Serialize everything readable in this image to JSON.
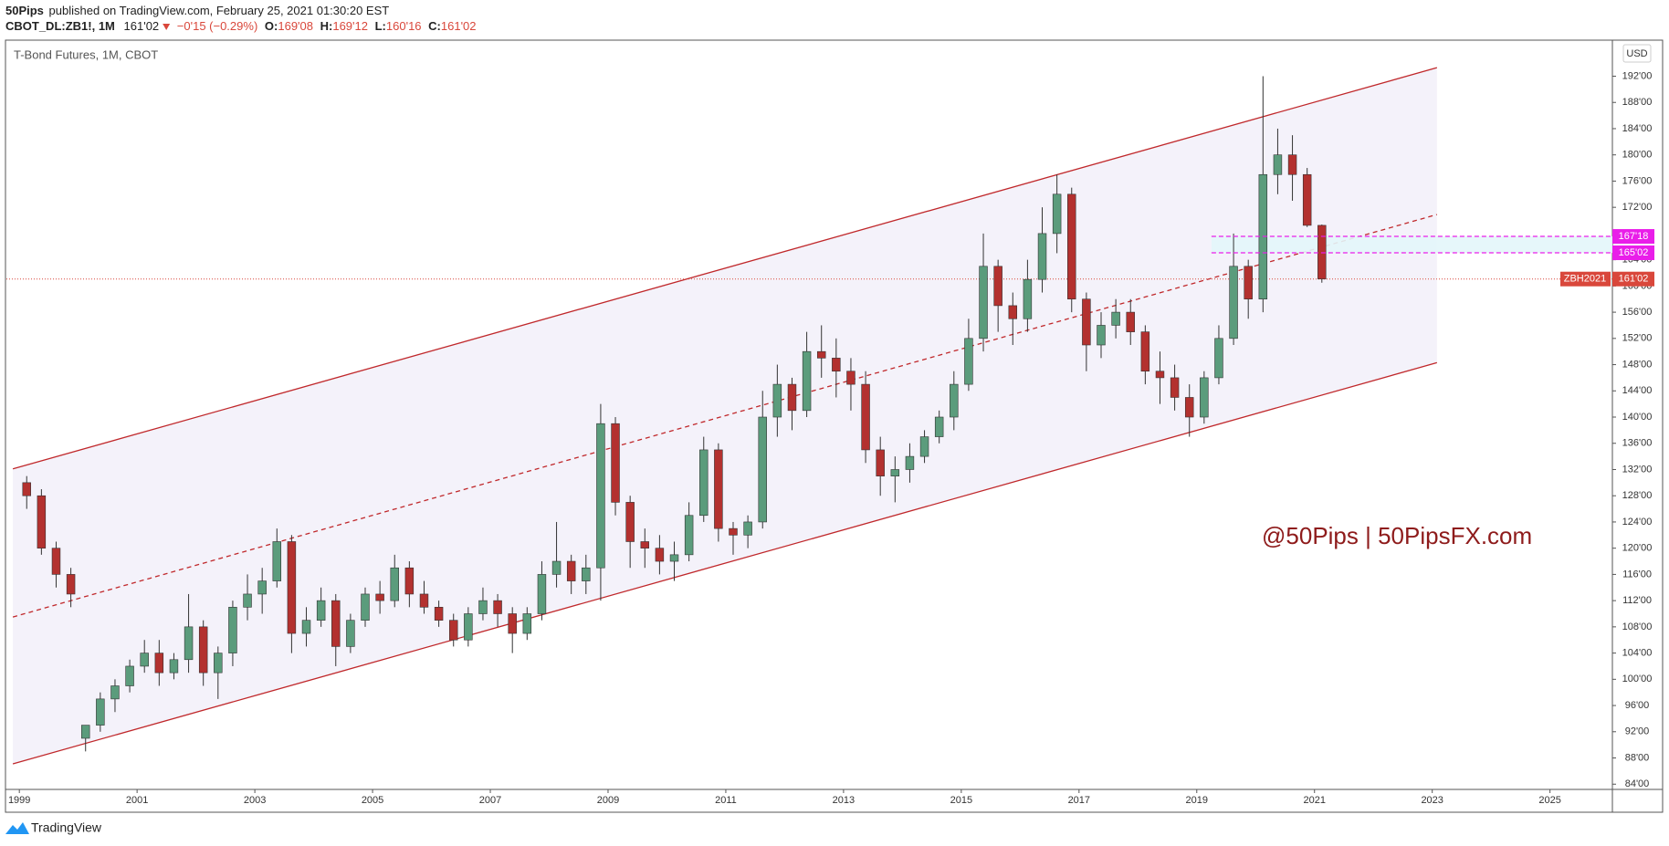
{
  "header": {
    "publisher": "50Pips",
    "published": "published on TradingView.com, February 25, 2021 01:30:20 EST",
    "symbol": "CBOT_DL:ZB1!, 1M",
    "last": "161'02",
    "change": "−0'15 (−0.29%)",
    "ohlc": [
      {
        "key": "O:",
        "value": "169'08"
      },
      {
        "key": "H:",
        "value": "169'12"
      },
      {
        "key": "L:",
        "value": "160'16"
      },
      {
        "key": "C:",
        "value": "161'02"
      }
    ]
  },
  "chart_data": {
    "type": "candlestick",
    "title": "T-Bond Futures, 1M, CBOT",
    "currency": "USD",
    "watermark": "@50Pips | 50PipsFX.com",
    "footer": "TradingView",
    "up_color": "#5b9c7c",
    "down_color": "#b3312f",
    "channel_color": "#c0282b",
    "channel_fill": "#f4f2fa",
    "xlim": [
      1998.78,
      2026.06
    ],
    "ylim": [
      83.2,
      197.5
    ],
    "xticks": [
      1999,
      2001,
      2003,
      2005,
      2007,
      2009,
      2011,
      2013,
      2015,
      2017,
      2019,
      2021,
      2023,
      2025
    ],
    "yticks": [
      {
        "value": 84,
        "label": "84'00"
      },
      {
        "value": 88,
        "label": "88'00"
      },
      {
        "value": 92,
        "label": "92'00"
      },
      {
        "value": 96,
        "label": "96'00"
      },
      {
        "value": 100,
        "label": "100'00"
      },
      {
        "value": 104,
        "label": "104'00"
      },
      {
        "value": 108,
        "label": "108'00"
      },
      {
        "value": 112,
        "label": "112'00"
      },
      {
        "value": 116,
        "label": "116'00"
      },
      {
        "value": 120,
        "label": "120'00"
      },
      {
        "value": 124,
        "label": "124'00"
      },
      {
        "value": 128,
        "label": "128'00"
      },
      {
        "value": 132,
        "label": "132'00"
      },
      {
        "value": 136,
        "label": "136'00"
      },
      {
        "value": 140,
        "label": "140'00"
      },
      {
        "value": 144,
        "label": "144'00"
      },
      {
        "value": 148,
        "label": "148'00"
      },
      {
        "value": 152,
        "label": "152'00"
      },
      {
        "value": 156,
        "label": "156'00"
      },
      {
        "value": 160,
        "label": "160'00"
      },
      {
        "value": 164,
        "label": "164'00"
      },
      {
        "value": 168,
        "label": "168'00"
      },
      {
        "value": 172,
        "label": "172'00"
      },
      {
        "value": 176,
        "label": "176'00"
      },
      {
        "value": 180,
        "label": "180'00"
      },
      {
        "value": 184,
        "label": "184'00"
      },
      {
        "value": 188,
        "label": "188'00"
      },
      {
        "value": 192,
        "label": "192'00"
      }
    ],
    "x": [
      1999.125,
      1999.375,
      1999.625,
      1999.875,
      2000.125,
      2000.375,
      2000.625,
      2000.875,
      2001.125,
      2001.375,
      2001.625,
      2001.875,
      2002.125,
      2002.375,
      2002.625,
      2002.875,
      2003.125,
      2003.375,
      2003.625,
      2003.875,
      2004.125,
      2004.375,
      2004.625,
      2004.875,
      2005.125,
      2005.375,
      2005.625,
      2005.875,
      2006.125,
      2006.375,
      2006.625,
      2006.875,
      2007.125,
      2007.375,
      2007.625,
      2007.875,
      2008.125,
      2008.375,
      2008.625,
      2008.875,
      2009.125,
      2009.375,
      2009.625,
      2009.875,
      2010.125,
      2010.375,
      2010.625,
      2010.875,
      2011.125,
      2011.375,
      2011.625,
      2011.875,
      2012.125,
      2012.375,
      2012.625,
      2012.875,
      2013.125,
      2013.375,
      2013.625,
      2013.875,
      2014.125,
      2014.375,
      2014.625,
      2014.875,
      2015.125,
      2015.375,
      2015.625,
      2015.875,
      2016.125,
      2016.375,
      2016.625,
      2016.875,
      2017.125,
      2017.375,
      2017.625,
      2017.875,
      2018.125,
      2018.375,
      2018.625,
      2018.875,
      2019.125,
      2019.375,
      2019.625,
      2019.875,
      2020.125,
      2020.375,
      2020.625,
      2020.875,
      2021.125
    ],
    "open": [
      130,
      128,
      120,
      116,
      91,
      93,
      97,
      99,
      102,
      104,
      101,
      103,
      108,
      101,
      104,
      111,
      113,
      115,
      121,
      107,
      109,
      112,
      105,
      109,
      113,
      112,
      117,
      113,
      111,
      109,
      106,
      110,
      112,
      110,
      107,
      110,
      116,
      118,
      115,
      117,
      139,
      127,
      121,
      120,
      118,
      119,
      125,
      135,
      123,
      122,
      124,
      140,
      145,
      141,
      150,
      149,
      147,
      145,
      135,
      131,
      132,
      134,
      137,
      140,
      145,
      152,
      163,
      157,
      155,
      161,
      168,
      174,
      158,
      151,
      154,
      156,
      153,
      147,
      146,
      143,
      140,
      146,
      152,
      163,
      158,
      177,
      180,
      177,
      169.25
    ],
    "high": [
      131,
      129,
      121,
      117,
      93,
      98,
      100,
      103,
      106,
      106,
      104,
      113,
      109,
      105,
      112,
      116,
      117,
      123,
      122,
      111,
      114,
      113,
      110,
      114,
      115,
      119,
      118,
      115,
      112,
      110,
      111,
      114,
      113,
      111,
      111,
      118,
      124,
      119,
      119,
      142,
      140,
      128,
      123,
      122,
      121,
      127,
      137,
      136,
      124,
      125,
      144,
      148,
      146,
      153,
      154,
      152,
      149,
      147,
      137,
      134,
      136,
      138,
      141,
      147,
      155,
      168,
      164,
      159,
      164,
      172,
      177,
      175,
      159,
      156,
      158,
      158,
      154,
      150,
      148,
      145,
      147,
      154,
      168,
      164,
      192,
      184,
      183,
      178,
      169.375
    ],
    "low": [
      126,
      119,
      114,
      111,
      89,
      92,
      95,
      98,
      101,
      99,
      100,
      101,
      99,
      97,
      102,
      109,
      110,
      114,
      104,
      105,
      108,
      102,
      104,
      108,
      110,
      111,
      111,
      110,
      108,
      105,
      105,
      109,
      108,
      104,
      106,
      109,
      114,
      113,
      113,
      112,
      125,
      117,
      117,
      116,
      115,
      118,
      124,
      121,
      119,
      120,
      123,
      137,
      138,
      140,
      146,
      143,
      141,
      133,
      128,
      127,
      130,
      133,
      136,
      138,
      144,
      150,
      153,
      151,
      153,
      159,
      165,
      156,
      147,
      149,
      152,
      151,
      145,
      142,
      141,
      137,
      139,
      145,
      151,
      155,
      156,
      174,
      173,
      169,
      160.5
    ],
    "close": [
      128,
      120,
      116,
      113,
      93,
      97,
      99,
      102,
      104,
      101,
      103,
      108,
      101,
      104,
      111,
      113,
      115,
      121,
      107,
      109,
      112,
      105,
      109,
      113,
      112,
      117,
      113,
      111,
      109,
      106,
      110,
      112,
      110,
      107,
      110,
      116,
      118,
      115,
      117,
      139,
      127,
      121,
      120,
      118,
      119,
      125,
      135,
      123,
      122,
      124,
      140,
      145,
      141,
      150,
      149,
      147,
      145,
      135,
      131,
      132,
      134,
      137,
      140,
      145,
      152,
      163,
      157,
      155,
      161,
      168,
      174,
      158,
      151,
      154,
      156,
      153,
      147,
      146,
      143,
      140,
      146,
      152,
      163,
      158,
      177,
      180,
      177,
      169.25,
      161.0625
    ],
    "channel": {
      "upper": [
        [
          1998.89,
          132.1
        ],
        [
          2023.08,
          193.3
        ]
      ],
      "middle": [
        [
          1998.89,
          109.5
        ],
        [
          2023.08,
          170.9
        ]
      ],
      "lower": [
        [
          1998.89,
          87.1
        ],
        [
          2023.08,
          148.3
        ]
      ]
    },
    "zone": {
      "x0": 2019.25,
      "color": "#e91ee9",
      "fill": "#e3f6fa",
      "levels": [
        {
          "value": 167.5625,
          "label": "167'18"
        },
        {
          "value": 165.0625,
          "label": "165'02"
        }
      ]
    },
    "last_price": {
      "value": 161.0625,
      "label": "161'02",
      "contract": "ZBH2021",
      "color": "#d9473b"
    }
  }
}
